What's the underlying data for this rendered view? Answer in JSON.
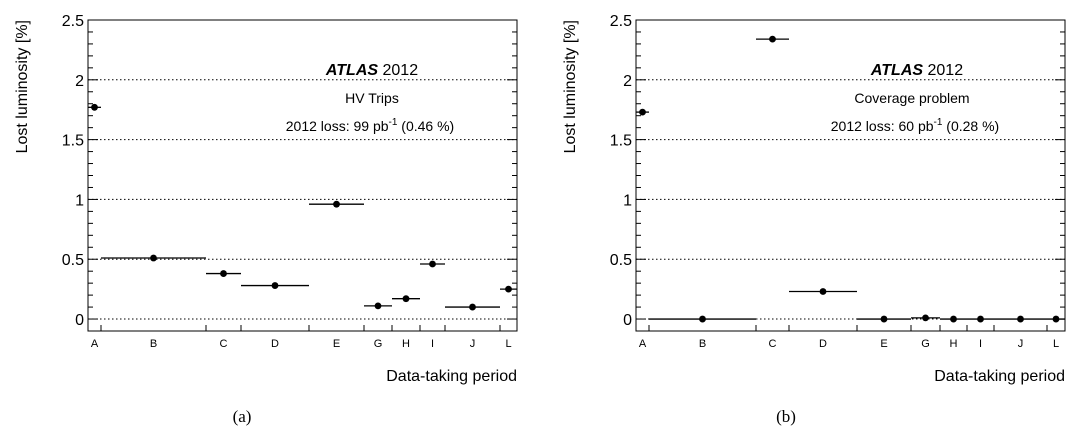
{
  "chart_data": [
    {
      "type": "scatter",
      "panel_label": "(a)",
      "experiment": "ATLAS",
      "year": "2012",
      "subtitle": "HV Trips",
      "loss_prefix": "2012 loss: 99 pb",
      "loss_exp": "-1",
      "loss_suffix": " (0.46 %)",
      "xlabel": "Data-taking period",
      "ylabel": "Lost luminosity [%]",
      "ylim": [
        -0.1,
        2.5
      ],
      "yticks": [
        "0",
        "0.5",
        "1",
        "1.5",
        "2",
        "2.5"
      ],
      "grid": "horizontal dotted",
      "categories": [
        "A",
        "B",
        "C",
        "D",
        "E",
        "G",
        "H",
        "I",
        "J",
        "L"
      ],
      "points": [
        {
          "period": "A",
          "value": 1.77
        },
        {
          "period": "B",
          "value": 0.51
        },
        {
          "period": "C",
          "value": 0.38
        },
        {
          "period": "D",
          "value": 0.28
        },
        {
          "period": "E",
          "value": 0.96
        },
        {
          "period": "G",
          "value": 0.11
        },
        {
          "period": "H",
          "value": 0.17
        },
        {
          "period": "I",
          "value": 0.46
        },
        {
          "period": "J",
          "value": 0.1
        },
        {
          "period": "L",
          "value": 0.25
        }
      ]
    },
    {
      "type": "scatter",
      "panel_label": "(b)",
      "experiment": "ATLAS",
      "year": "2012",
      "subtitle": "Coverage problem",
      "loss_prefix": "2012 loss: 60 pb",
      "loss_exp": "-1",
      "loss_suffix": " (0.28 %)",
      "xlabel": "Data-taking period",
      "ylabel": "Lost luminosity [%]",
      "ylim": [
        -0.1,
        2.5
      ],
      "yticks": [
        "0",
        "0.5",
        "1",
        "1.5",
        "2",
        "2.5"
      ],
      "grid": "horizontal dotted",
      "categories": [
        "A",
        "B",
        "C",
        "D",
        "E",
        "G",
        "H",
        "I",
        "J",
        "L"
      ],
      "points": [
        {
          "period": "A",
          "value": 1.73
        },
        {
          "period": "B",
          "value": 0.0
        },
        {
          "period": "C",
          "value": 2.34
        },
        {
          "period": "D",
          "value": 0.23
        },
        {
          "period": "E",
          "value": 0.0
        },
        {
          "period": "G",
          "value": 0.01
        },
        {
          "period": "H",
          "value": 0.0
        },
        {
          "period": "I",
          "value": 0.0
        },
        {
          "period": "J",
          "value": 0.0
        },
        {
          "period": "L",
          "value": 0.0
        }
      ]
    }
  ]
}
